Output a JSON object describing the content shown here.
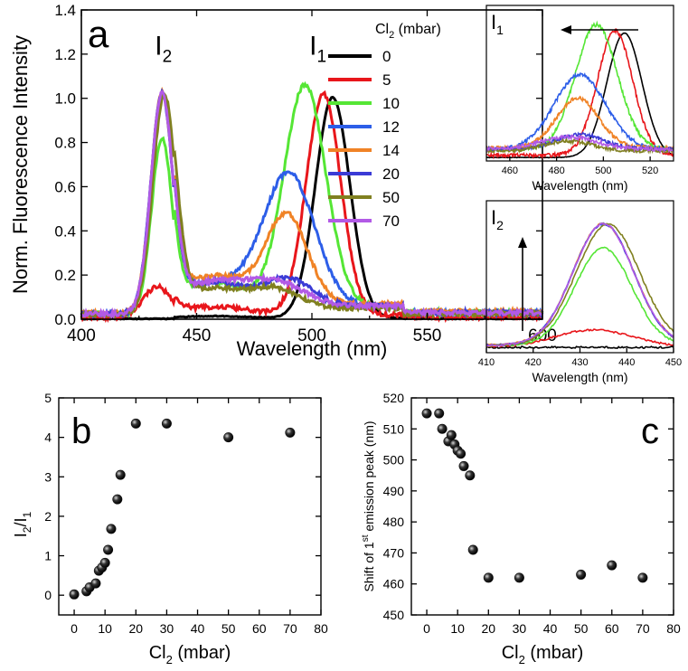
{
  "chart_data": [
    {
      "id": "a",
      "type": "line",
      "panel_label": "a",
      "xlabel": "Wavelength (nm)",
      "ylabel": "Norm. Fluorescence Intensity",
      "xlim": [
        400,
        600
      ],
      "ylim": [
        0,
        1.4
      ],
      "xticks": [
        "400",
        "450",
        "500",
        "550",
        "600"
      ],
      "yticks": [
        "0.0",
        "0.2",
        "0.4",
        "0.6",
        "0.8",
        "1.0",
        "1.2",
        "1.4"
      ],
      "legend_title_prefix": "Cl",
      "legend_title_sub": "2",
      "legend_title_suffix": " (mbar)",
      "legend_placement": "top-right",
      "peak_labels": [
        {
          "main": "I",
          "sub": "2",
          "x": 435,
          "y": 1.18
        },
        {
          "main": "I",
          "sub": "1",
          "x": 502,
          "y": 1.18
        }
      ],
      "series": [
        {
          "name": "0",
          "color": "#000000",
          "peak1": {
            "center": 509,
            "width": 7.5,
            "height": 1.0
          },
          "peak2": {
            "center": 435,
            "width": 5,
            "height": 0.0
          },
          "baseline": 0.005
        },
        {
          "name": "5",
          "color": "#e8161b",
          "peak1": {
            "center": 505,
            "width": 7.5,
            "height": 1.0
          },
          "peak2": {
            "center": 433,
            "width": 6,
            "height": 0.14
          },
          "baseline": 0.02
        },
        {
          "name": "10",
          "color": "#55e635",
          "peak1": {
            "center": 497,
            "width": 9,
            "height": 1.0
          },
          "peak2": {
            "center": 435,
            "width": 4.5,
            "height": 0.8
          },
          "baseline": 0.06
        },
        {
          "name": "12",
          "color": "#2d5ee8",
          "peak1": {
            "center": 490,
            "width": 11,
            "height": 0.6
          },
          "peak2": {
            "center": 435,
            "width": 4.8,
            "height": 1.0
          },
          "baseline": 0.06
        },
        {
          "name": "14",
          "color": "#f08326",
          "peak1": {
            "center": 489,
            "width": 9,
            "height": 0.4
          },
          "peak2": {
            "center": 435,
            "width": 4.8,
            "height": 1.0
          },
          "baseline": 0.07
        },
        {
          "name": "20",
          "color": "#3b3bd6",
          "peak1": {
            "center": 490,
            "width": 10,
            "height": 0.12
          },
          "peak2": {
            "center": 435,
            "width": 4.8,
            "height": 1.0
          },
          "baseline": 0.06
        },
        {
          "name": "50",
          "color": "#808020",
          "peak1": {
            "center": 485,
            "width": 10,
            "height": 0.08
          },
          "peak2": {
            "center": 436,
            "width": 5,
            "height": 1.0
          },
          "baseline": 0.05
        },
        {
          "name": "70",
          "color": "#b25ae6",
          "peak1": {
            "center": 485,
            "width": 12,
            "height": 0.1
          },
          "peak2": {
            "center": 435,
            "width": 4.8,
            "height": 1.0
          },
          "baseline": 0.06
        }
      ]
    },
    {
      "id": "inset1",
      "type": "line",
      "panel_label": "I",
      "panel_label_sub": "1",
      "xlabel": "Wavelength (nm)",
      "xlim": [
        450,
        530
      ],
      "xticks": [
        "460",
        "480",
        "500",
        "520"
      ],
      "arrow": "leftward",
      "series_ref": "a",
      "peak_index": 1
    },
    {
      "id": "inset2",
      "type": "line",
      "panel_label": "I",
      "panel_label_sub": "2",
      "xlabel": "Wavelength (nm)",
      "xlim": [
        410,
        450
      ],
      "xticks": [
        "410",
        "420",
        "430",
        "440",
        "450"
      ],
      "arrow": "upward",
      "series_ref": "a",
      "peak_index": 2
    },
    {
      "id": "b",
      "type": "scatter",
      "panel_label": "b",
      "xlabel_prefix": "Cl",
      "xlabel_sub": "2",
      "xlabel_suffix": " (mbar)",
      "ylabel": "I2/I1",
      "xlim": [
        -5,
        80
      ],
      "ylim": [
        -0.5,
        5
      ],
      "xticks": [
        "0",
        "10",
        "20",
        "30",
        "40",
        "50",
        "60",
        "70",
        "80"
      ],
      "yticks": [
        "0",
        "1",
        "2",
        "3",
        "4",
        "5"
      ],
      "x": [
        0,
        4,
        5,
        7,
        8,
        9,
        10,
        11,
        12,
        14,
        15,
        20,
        30,
        50,
        70
      ],
      "y": [
        0.02,
        0.1,
        0.2,
        0.3,
        0.62,
        0.7,
        0.82,
        1.15,
        1.68,
        2.43,
        3.05,
        4.35,
        4.35,
        4.0,
        4.12
      ]
    },
    {
      "id": "c",
      "type": "scatter",
      "panel_label": "c",
      "xlabel_prefix": "Cl",
      "xlabel_sub": "2",
      "xlabel_suffix": " (mbar)",
      "ylabel_prefix": "Shift of 1",
      "ylabel_sup": "st",
      "ylabel_suffix": " emission peak (nm)",
      "xlim": [
        -5,
        80
      ],
      "ylim": [
        450,
        520
      ],
      "xticks": [
        "0",
        "10",
        "20",
        "30",
        "40",
        "50",
        "60",
        "70",
        "80"
      ],
      "yticks": [
        "450",
        "460",
        "470",
        "480",
        "490",
        "500",
        "510",
        "520"
      ],
      "x": [
        0,
        4,
        5,
        7,
        8,
        9,
        10,
        11,
        12,
        14,
        15,
        20,
        30,
        50,
        60,
        70
      ],
      "y": [
        515,
        515,
        510,
        506,
        508,
        505,
        503,
        502,
        498,
        495,
        471,
        462,
        462,
        463,
        466,
        462
      ]
    }
  ]
}
